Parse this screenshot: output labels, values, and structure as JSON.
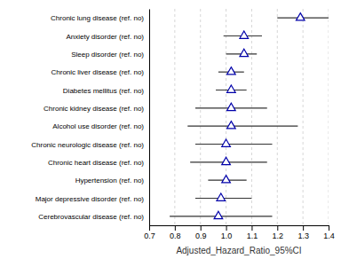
{
  "chart_data": {
    "type": "forest",
    "categories": [
      "Chronic lung disease (ref. no)",
      "Anxiety disorder (ref. no)",
      "Sleep disorder (ref. no)",
      "Chronic liver disease (ref. no)",
      "Diabetes mellitus (ref. no)",
      "Chronic kidney disease (ref. no)",
      "Alcohol use disorder (ref. no)",
      "Chronic neurologic disease (ref. no)",
      "Chronic heart disease (ref. no)",
      "Hypertension (ref. no)",
      "Major depressive disorder (ref. no)",
      "Cerebrovascular disease (ref. no)"
    ],
    "values": [
      1.29,
      1.07,
      1.07,
      1.02,
      1.02,
      1.02,
      1.02,
      1.0,
      1.0,
      1.0,
      0.98,
      0.97
    ],
    "ci_low": [
      1.2,
      0.99,
      1.0,
      0.97,
      0.96,
      0.88,
      0.85,
      0.88,
      0.86,
      0.93,
      0.88,
      0.78
    ],
    "ci_high": [
      1.4,
      1.14,
      1.12,
      1.07,
      1.08,
      1.16,
      1.28,
      1.18,
      1.16,
      1.08,
      1.1,
      1.18
    ],
    "xlabel": "Adjusted_Hazard_Ratio_95%CI",
    "xlim": [
      0.7,
      1.4
    ],
    "xticks": [
      0.7,
      0.8,
      0.9,
      {
        "value": 1.0,
        "label": "1.0"
      },
      1.1,
      1.2,
      1.3,
      1.4
    ],
    "grid": true,
    "color": "#0000aa",
    "marker": "triangle"
  }
}
